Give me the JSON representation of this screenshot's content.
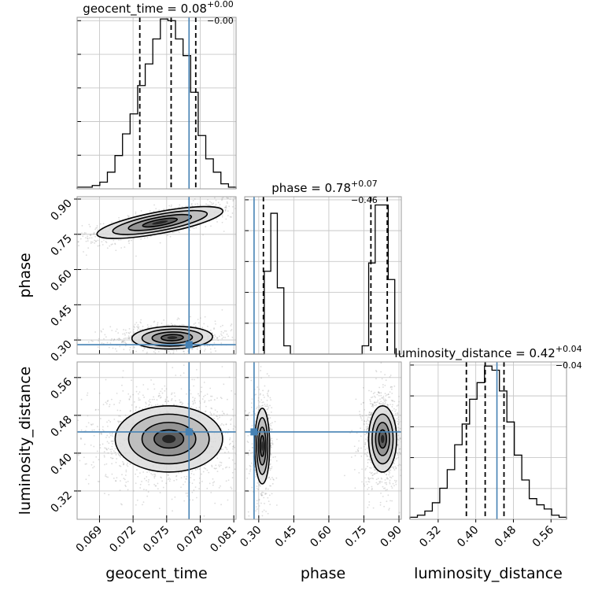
{
  "chart_data": {
    "type": "corner",
    "parameters": [
      {
        "name": "geocent_time",
        "range": [
          0.067,
          0.0812
        ],
        "ticks": [
          "0.069",
          "0.072",
          "0.075",
          "0.078",
          "0.081"
        ],
        "tick_values": [
          0.069,
          0.072,
          0.075,
          0.078,
          0.081
        ],
        "truth": 0.077,
        "quantiles": [
          0.0726,
          0.0754,
          0.0776
        ],
        "title_main": "geocent_time = 0.08",
        "title_sup": "+0.00",
        "title_sub": "−0.00",
        "hist_counts": [
          1,
          1,
          2,
          4,
          10,
          20,
          33,
          45,
          62,
          75,
          90,
          102,
          101,
          90,
          80,
          58,
          32,
          18,
          10,
          3,
          1
        ],
        "hist_max": 103
      },
      {
        "name": "phase",
        "range": [
          0.24,
          0.91
        ],
        "ticks": [
          "0.30",
          "0.45",
          "0.60",
          "0.75",
          "0.90"
        ],
        "tick_values": [
          0.3,
          0.45,
          0.6,
          0.75,
          0.9
        ],
        "truth": 0.28,
        "quantiles": [
          0.32,
          0.78,
          0.85
        ],
        "title_main": "phase = 0.78",
        "title_sup": "+0.07",
        "title_sub": "−0.46",
        "hist_counts": [
          0,
          0,
          0,
          10,
          17,
          8,
          1,
          0,
          0,
          0,
          0,
          0,
          0,
          0,
          0,
          0,
          0,
          0,
          1,
          11,
          18,
          18,
          9,
          0
        ],
        "hist_max": 19
      },
      {
        "name": "luminosity_distance",
        "range": [
          0.26,
          0.593
        ],
        "ticks": [
          "0.32",
          "0.40",
          "0.48",
          "0.56"
        ],
        "tick_values": [
          0.32,
          0.4,
          0.48,
          0.56
        ],
        "truth": 0.445,
        "quantiles": [
          0.38,
          0.42,
          0.46
        ],
        "title_main": "luminosity_distance = 0.42",
        "title_sup": "+0.04",
        "title_sub": "−0.04",
        "hist_counts": [
          1,
          2,
          4,
          8,
          15,
          24,
          36,
          46,
          58,
          66,
          74,
          72,
          62,
          47,
          31,
          19,
          10,
          7,
          5,
          2,
          1
        ],
        "hist_max": 76
      }
    ],
    "pairs": [
      {
        "x": "geocent_time",
        "y": "phase",
        "blobs": [
          {
            "cx": 0.0744,
            "cy": 0.8,
            "sx": 0.0028,
            "sy": 0.035,
            "rho": 0.8,
            "weight": 0.5
          },
          {
            "cx": 0.0755,
            "cy": 0.31,
            "sx": 0.0018,
            "sy": 0.022,
            "rho": 0.1,
            "weight": 0.5
          }
        ]
      },
      {
        "x": "geocent_time",
        "y": "luminosity_distance",
        "blobs": [
          {
            "cx": 0.0752,
            "cy": 0.43,
            "sx": 0.0024,
            "sy": 0.035,
            "rho": 0.0,
            "weight": 1.0
          }
        ]
      },
      {
        "x": "phase",
        "y": "luminosity_distance",
        "blobs": [
          {
            "cx": 0.315,
            "cy": 0.415,
            "sx": 0.016,
            "sy": 0.04,
            "rho": 0.0,
            "weight": 0.35
          },
          {
            "cx": 0.83,
            "cy": 0.43,
            "sx": 0.03,
            "sy": 0.035,
            "rho": 0.0,
            "weight": 0.65
          }
        ]
      }
    ]
  }
}
